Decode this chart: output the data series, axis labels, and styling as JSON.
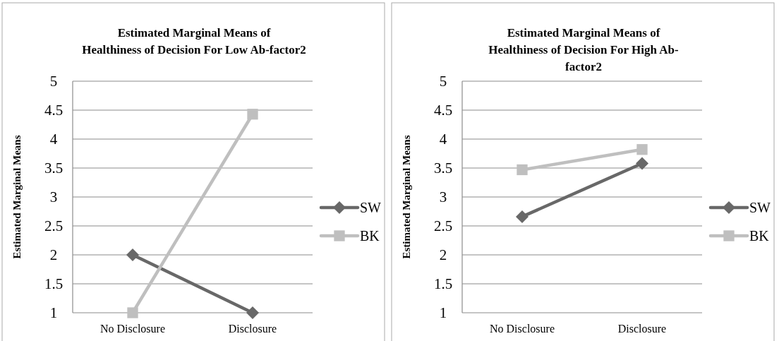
{
  "chart_data": [
    {
      "type": "line",
      "title": "Estimated Marginal Means of\nHealthiness of Decision For Low Ab-factor2",
      "ylabel": "Estimated Marginal Means",
      "categories": [
        "No Disclosure",
        "Disclosure"
      ],
      "ylim": [
        1,
        5
      ],
      "yticks": [
        1,
        1.5,
        2,
        2.5,
        3,
        3.5,
        4,
        4.5,
        5
      ],
      "grid": "y",
      "legend": "right",
      "line_style": "solid",
      "series": [
        {
          "name": "SW",
          "color": "#686868",
          "marker": "diamond",
          "values": [
            2,
            1
          ]
        },
        {
          "name": "BK",
          "color": "#bfbfbf",
          "marker": "square",
          "values": [
            1,
            4.43
          ]
        }
      ]
    },
    {
      "type": "line",
      "title": "Estimated Marginal Means of\nHealthiness of Decision For High Ab-factor2",
      "ylabel": "Estimated Marginal Means",
      "categories": [
        "No Disclosure",
        "Disclosure"
      ],
      "ylim": [
        1,
        5
      ],
      "yticks": [
        1,
        1.5,
        2,
        2.5,
        3,
        3.5,
        4,
        4.5,
        5
      ],
      "grid": "y",
      "legend": "right",
      "line_style": "solid",
      "series": [
        {
          "name": "SW",
          "color": "#686868",
          "marker": "diamond",
          "values": [
            2.66,
            3.58
          ]
        },
        {
          "name": "BK",
          "color": "#bfbfbf",
          "marker": "square",
          "values": [
            3.47,
            3.82
          ]
        }
      ]
    }
  ]
}
